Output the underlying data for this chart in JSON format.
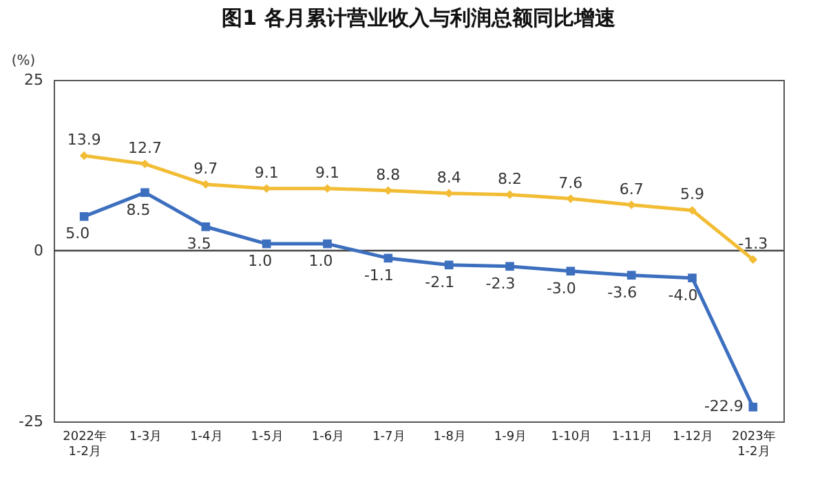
{
  "chart_data": {
    "type": "line",
    "title": "图1  各月累计营业收入与利润总额同比增速",
    "ylabel": "(%)",
    "categories": [
      "2022年\n1-2月",
      "1-3月",
      "1-4月",
      "1-5月",
      "1-6月",
      "1-7月",
      "1-8月",
      "1-9月",
      "1-10月",
      "1-11月",
      "1-12月",
      "2023年\n1-2月"
    ],
    "series": [
      {
        "color": "#f2bd35",
        "marker": "diamond",
        "values": [
          13.9,
          12.7,
          9.7,
          9.1,
          9.1,
          8.8,
          8.4,
          8.2,
          7.6,
          6.7,
          5.9,
          -1.3
        ],
        "value_labels": [
          "13.9",
          "12.7",
          "9.7",
          "9.1",
          "9.1",
          "8.8",
          "8.4",
          "8.2",
          "7.6",
          "6.7",
          "5.9",
          "-1.3"
        ]
      },
      {
        "color": "#3d6fbf",
        "marker": "square",
        "values": [
          5.0,
          8.5,
          3.5,
          1.0,
          1.0,
          -1.1,
          -2.1,
          -2.3,
          -3.0,
          -3.6,
          -4.0,
          -22.9
        ],
        "value_labels": [
          "5.0",
          "8.5",
          "3.5",
          "1.0",
          "1.0",
          "-1.1",
          "-2.1",
          "-2.3",
          "-3.0",
          "-3.6",
          "-4.0",
          "-22.9"
        ]
      }
    ],
    "ylim": [
      -25,
      25
    ],
    "yticks": [
      -25,
      0,
      25
    ],
    "grid": false,
    "line_style": "solid",
    "ref_lines": [
      {
        "axis": "y",
        "value": 0
      }
    ]
  }
}
